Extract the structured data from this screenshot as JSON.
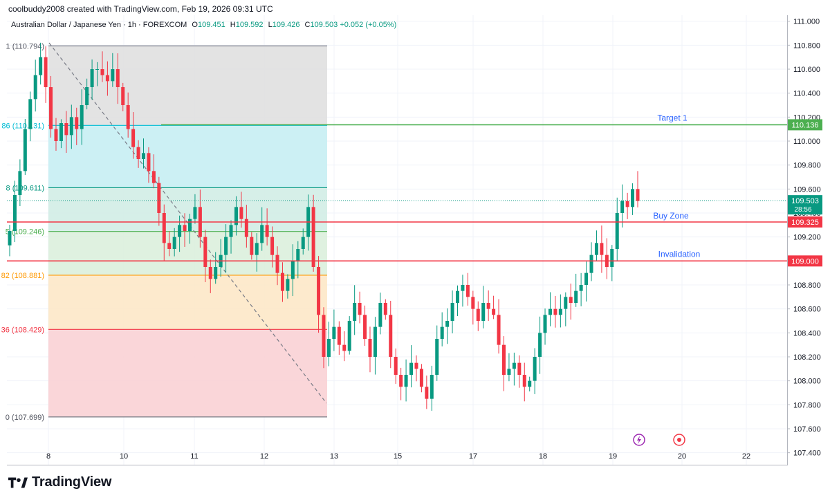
{
  "caption": "coolbuddy2008 created with TradingView.com, Feb 19, 2026 09:31 UTC",
  "legend": {
    "symbol": "Australian Dollar / Japanese Yen · 1h · FOREXCOM",
    "o_label": "O",
    "o": "109.451",
    "h_label": "H",
    "h": "109.592",
    "l_label": "L",
    "l": "109.426",
    "c_label": "C",
    "c": "109.503",
    "change": "+0.052 (+0.05%)"
  },
  "brand": "TradingView",
  "colors": {
    "up": "#089981",
    "down": "#f23645",
    "target": "#4caf50",
    "level_red": "#f23645",
    "annotation_text": "#2962ff",
    "fib_1": "#787b86",
    "fib_0786": "#00bcd4",
    "fib_0618": "#089981",
    "fib_05": "#4caf50",
    "fib_0382": "#ff9800",
    "fib_0236": "#f23645",
    "fib_0": "#787b86"
  },
  "chart_data": {
    "type": "candlestick",
    "y_axis": {
      "range": [
        107.3,
        111.05
      ],
      "ticks": [
        "107.400",
        "107.600",
        "107.800",
        "108.000",
        "108.200",
        "108.400",
        "108.600",
        "108.800",
        "109.000",
        "109.200",
        "109.400",
        "109.600",
        "109.800",
        "110.000",
        "110.200",
        "110.400",
        "110.600",
        "110.800",
        "111.000"
      ]
    },
    "x_axis": {
      "ticks": [
        "8",
        "10",
        "11",
        "12",
        "13",
        "15",
        "17",
        "18",
        "19",
        "20",
        "22"
      ]
    },
    "last_price": {
      "value": "109.503",
      "countdown": "28:56"
    },
    "horizontal_levels": [
      {
        "name": "Target 1",
        "value": 110.136,
        "label": "110.136",
        "color": "#4caf50"
      },
      {
        "name": "Buy Zone",
        "value": 109.325,
        "label": "109.325",
        "color": "#f23645"
      },
      {
        "name": "Invalidation",
        "value": 109.0,
        "label": "109.000",
        "color": "#f23645"
      }
    ],
    "fibonacci": [
      {
        "label": "1 (110.794)",
        "value": 110.794
      },
      {
        "label": "86 (110.131)",
        "value": 110.131
      },
      {
        "label": "8 (109.611)",
        "value": 109.611
      },
      {
        "label": "5 (109.246)",
        "value": 109.246
      },
      {
        "label": "82 (108.881)",
        "value": 108.881
      },
      {
        "label": "36 (108.429)",
        "value": 108.429
      },
      {
        "label": "0 (107.699)",
        "value": 107.699
      }
    ],
    "events": [
      "lightning-event-icon",
      "record-event-icon"
    ],
    "closes": [
      109.25,
      109.55,
      109.75,
      110.1,
      110.35,
      110.55,
      110.7,
      110.45,
      110.1,
      110.0,
      110.15,
      110.05,
      110.2,
      110.1,
      110.3,
      110.45,
      110.6,
      110.6,
      110.55,
      110.5,
      110.6,
      110.45,
      110.3,
      110.1,
      109.95,
      109.85,
      109.9,
      109.75,
      109.65,
      109.4,
      109.15,
      109.1,
      109.2,
      109.3,
      109.25,
      109.35,
      109.45,
      109.2,
      108.95,
      108.85,
      108.95,
      109.05,
      109.2,
      109.3,
      109.45,
      109.35,
      109.2,
      109.05,
      109.15,
      109.3,
      109.2,
      109.05,
      108.9,
      108.75,
      108.85,
      109.0,
      109.1,
      109.2,
      109.45,
      108.95,
      108.55,
      108.2,
      108.35,
      108.45,
      108.3,
      108.25,
      108.5,
      108.65,
      108.55,
      108.35,
      108.2,
      108.45,
      108.65,
      108.55,
      108.2,
      108.05,
      107.95,
      108.05,
      108.15,
      108.1,
      107.95,
      107.85,
      108.05,
      108.35,
      108.45,
      108.5,
      108.65,
      108.75,
      108.8,
      108.7,
      108.6,
      108.5,
      108.65,
      108.6,
      108.55,
      108.3,
      108.05,
      108.1,
      108.15,
      108.05,
      107.95,
      108.0,
      108.2,
      108.4,
      108.55,
      108.6,
      108.55,
      108.6,
      108.7,
      108.65,
      108.75,
      108.8,
      108.9,
      109.05,
      109.15,
      109.05,
      108.95,
      109.1,
      109.4,
      109.5,
      109.45,
      109.6,
      109.5
    ]
  }
}
